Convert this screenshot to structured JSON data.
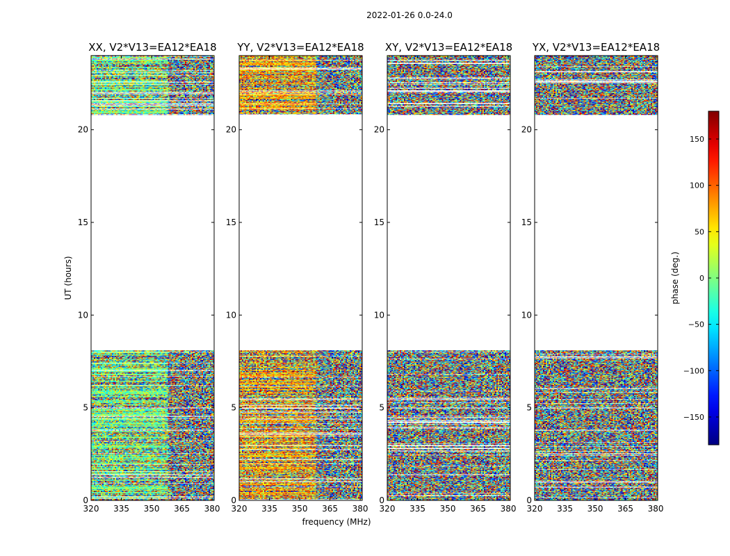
{
  "chart_data": {
    "type": "heatmap",
    "suptitle": "2022-01-26 0.0-24.0",
    "xlabel": "frequency (MHz)",
    "ylabel": "UT (hours)",
    "xlim": [
      320,
      381
    ],
    "ylim": [
      0,
      24
    ],
    "xticks": [
      320,
      335,
      350,
      365,
      380
    ],
    "yticks": [
      0,
      5,
      10,
      15,
      20
    ],
    "panels": [
      {
        "title": "XX, V2*V13=EA12*EA18",
        "polarization": "XX",
        "colormap_bias": "green-yellow",
        "data_ranges_ut": [
          [
            0,
            8.1
          ],
          [
            20.8,
            24
          ]
        ]
      },
      {
        "title": "YY, V2*V13=EA12*EA18",
        "polarization": "YY",
        "colormap_bias": "orange-yellow",
        "data_ranges_ut": [
          [
            0,
            8.1
          ],
          [
            20.8,
            24
          ]
        ]
      },
      {
        "title": "XY, V2*V13=EA12*EA18",
        "polarization": "XY",
        "colormap_bias": "random",
        "data_ranges_ut": [
          [
            0,
            8.1
          ],
          [
            20.8,
            24
          ]
        ]
      },
      {
        "title": "YX, V2*V13=EA12*EA18",
        "polarization": "YX",
        "colormap_bias": "random",
        "data_ranges_ut": [
          [
            0,
            8.1
          ],
          [
            20.8,
            24
          ]
        ]
      }
    ],
    "colorbar": {
      "label": "phase (deg.)",
      "vmin": -180,
      "vmax": 180,
      "ticks": [
        -150,
        -100,
        -50,
        0,
        50,
        100,
        150
      ],
      "tick_labels": [
        "−150",
        "−100",
        "−50",
        "0",
        "50",
        "100",
        "150"
      ],
      "colormap": "jet"
    }
  }
}
